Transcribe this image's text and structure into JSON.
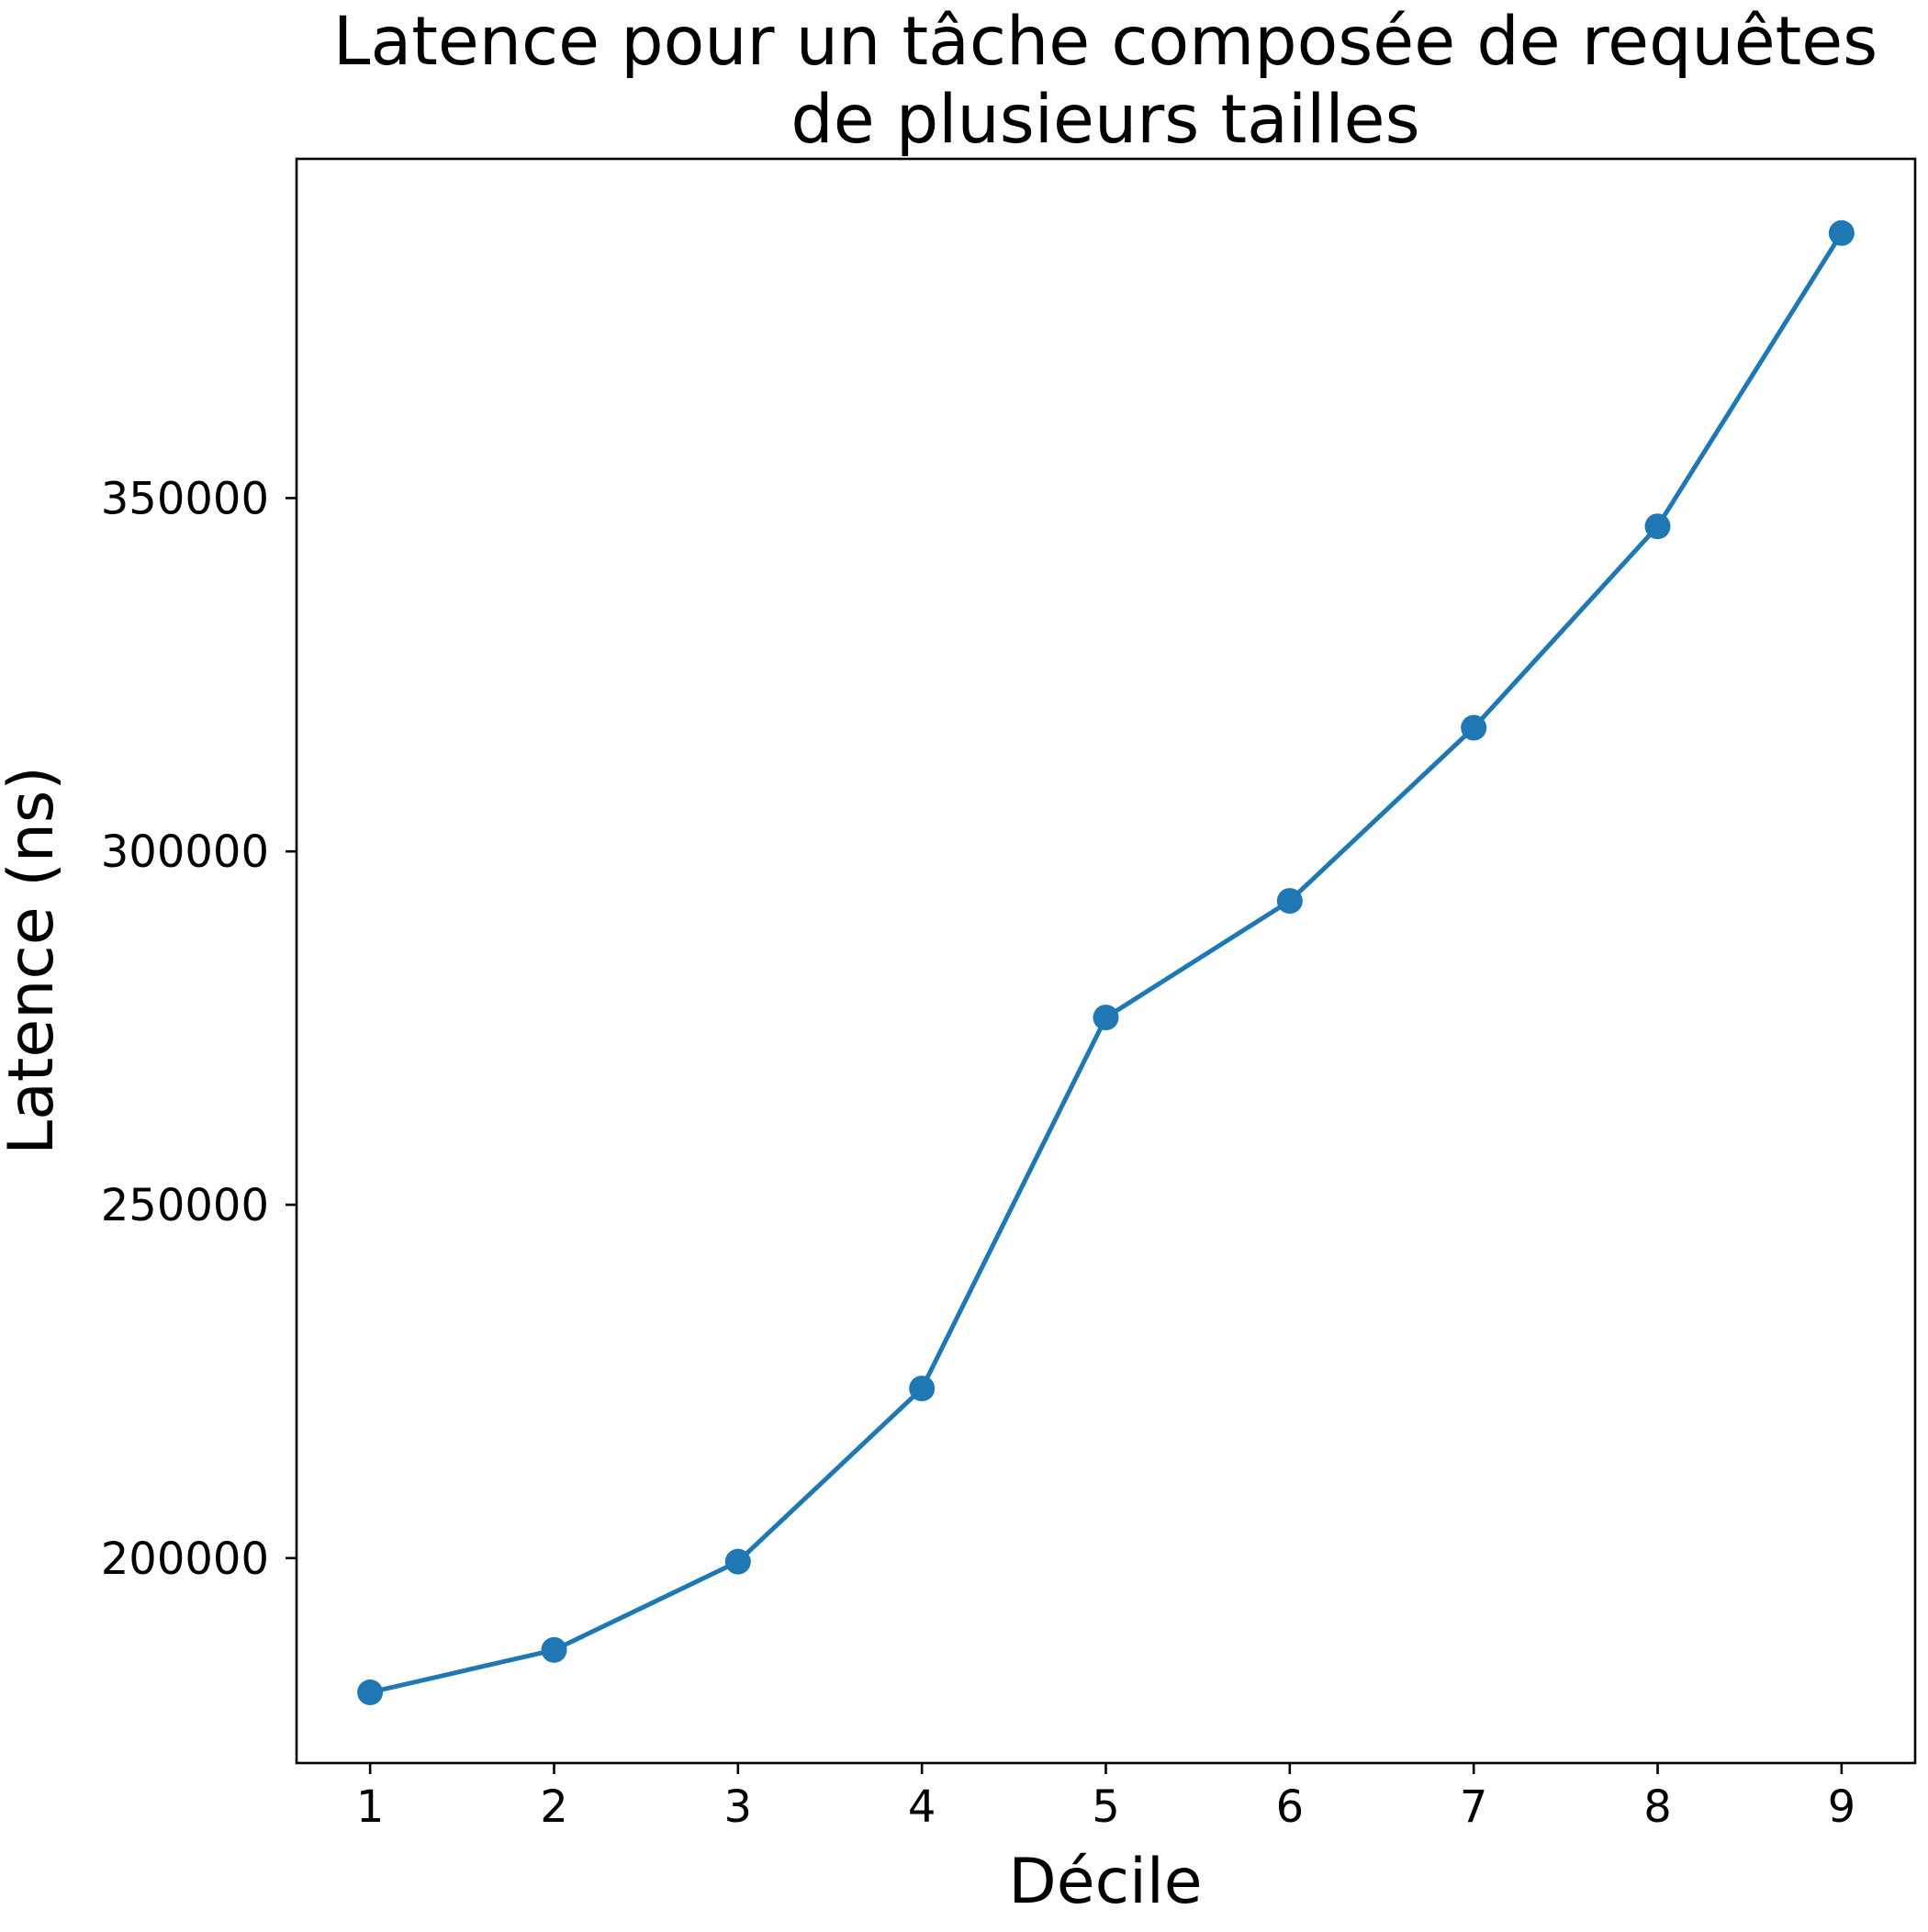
{
  "chart_data": {
    "type": "line",
    "title_lines": [
      "Latence pour un tâche composée de requêtes",
      "de plusieurs tailles"
    ],
    "xlabel": "Décile",
    "ylabel": "Latence (ns)",
    "x_ticks": [
      "1",
      "2",
      "3",
      "4",
      "5",
      "6",
      "7",
      "8",
      "9"
    ],
    "y_ticks": [
      "200000",
      "250000",
      "300000",
      "350000"
    ],
    "y_tick_values": [
      200000,
      250000,
      300000,
      350000
    ],
    "xlim": [
      0.6,
      9.4
    ],
    "ylim": [
      171000,
      398000
    ],
    "grid": false,
    "legend": "none",
    "series": [
      {
        "color": "#1f77b4",
        "x": [
          1,
          2,
          3,
          4,
          5,
          6,
          7,
          8,
          9
        ],
        "values": [
          181000,
          187000,
          199500,
          224000,
          276500,
          293000,
          317500,
          346000,
          387500
        ]
      }
    ]
  }
}
